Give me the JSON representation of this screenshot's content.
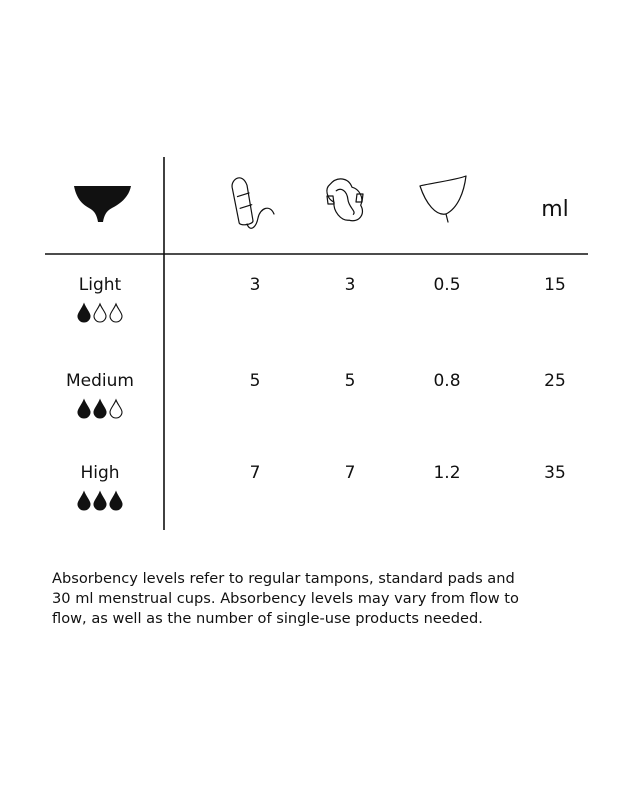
{
  "table": {
    "header": [
      "ml"
    ],
    "rows": [
      [
        "Light",
        3,
        3,
        0.5,
        15
      ],
      [
        "Medium",
        5,
        5,
        0.8,
        25
      ],
      [
        "High",
        7,
        7,
        1.2,
        35
      ]
    ]
  },
  "footnote": [
    "Absorbency levels refer to regular tampons, standard pads and",
    "30 ml menstrual cups. Absorbency levels may vary from flow to",
    "flow, as well as the number of single-use products needed."
  ]
}
